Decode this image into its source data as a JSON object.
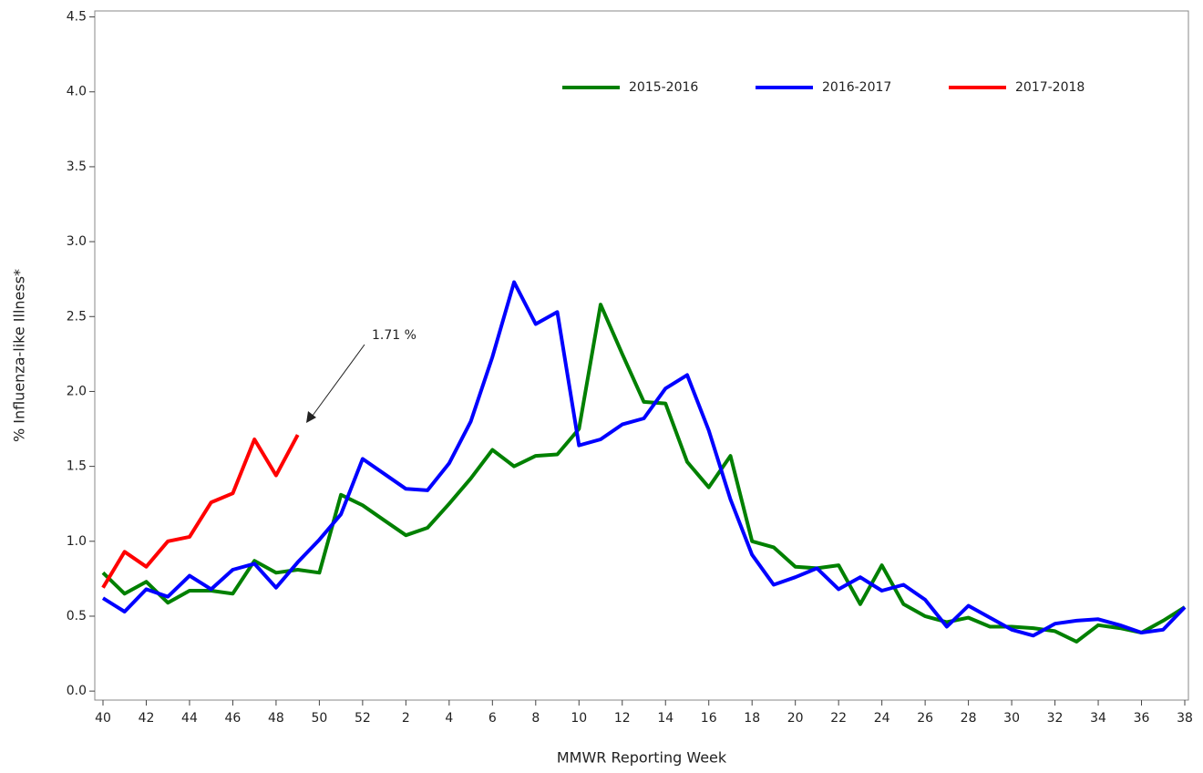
{
  "chart_data": {
    "type": "line",
    "x_label": "MMWR Reporting Week",
    "y_label": "% Influenza-like Illness*",
    "categories": [
      "40",
      null,
      "42",
      null,
      "44",
      null,
      "46",
      null,
      "48",
      null,
      "50",
      null,
      "52",
      null,
      "2",
      null,
      "4",
      null,
      "6",
      null,
      "8",
      null,
      "10",
      null,
      "12",
      null,
      "14",
      null,
      "16",
      null,
      "18",
      null,
      "20",
      null,
      "22",
      null,
      "24",
      null,
      "26",
      null,
      "28",
      null,
      "30",
      null,
      "32",
      null,
      "34",
      null,
      "36",
      null,
      "38"
    ],
    "series": [
      {
        "name": "2015-2016",
        "color": "#008000",
        "values": [
          0.79,
          0.65,
          0.73,
          0.59,
          0.67,
          0.67,
          0.65,
          0.87,
          0.79,
          0.81,
          0.79,
          1.31,
          1.24,
          1.14,
          1.04,
          1.09,
          1.25,
          1.42,
          1.61,
          1.5,
          1.57,
          1.58,
          1.75,
          2.58,
          2.25,
          1.93,
          1.92,
          1.53,
          1.36,
          1.57,
          1.0,
          0.96,
          0.83,
          0.82,
          0.84,
          0.58,
          0.84,
          0.58,
          0.5,
          0.46,
          0.49,
          0.43,
          0.43,
          0.42,
          0.4,
          0.33,
          0.44,
          0.42,
          0.39,
          0.47,
          0.56
        ]
      },
      {
        "name": "2016-2017",
        "color": "#0000ff",
        "values": [
          0.62,
          0.53,
          0.68,
          0.63,
          0.77,
          0.68,
          0.81,
          0.85,
          0.69,
          0.86,
          1.01,
          1.18,
          1.55,
          1.45,
          1.35,
          1.34,
          1.52,
          1.8,
          2.23,
          2.73,
          2.45,
          2.53,
          1.64,
          1.68,
          1.78,
          1.82,
          2.02,
          2.11,
          1.74,
          1.28,
          0.91,
          0.71,
          0.76,
          0.82,
          0.68,
          0.76,
          0.67,
          0.71,
          0.61,
          0.43,
          0.57,
          0.49,
          0.41,
          0.37,
          0.45,
          0.47,
          0.48,
          0.44,
          0.39,
          0.41,
          0.56
        ]
      },
      {
        "name": "2017-2018",
        "color": "#ff0000",
        "values": [
          0.69,
          0.93,
          0.83,
          1.0,
          1.03,
          1.26,
          1.32,
          1.68,
          1.44,
          1.71,
          null,
          null,
          null,
          null,
          null,
          null,
          null,
          null,
          null,
          null,
          null,
          null,
          null,
          null,
          null,
          null,
          null,
          null,
          null,
          null,
          null,
          null,
          null,
          null,
          null,
          null,
          null,
          null,
          null,
          null,
          null,
          null,
          null,
          null,
          null,
          null,
          null,
          null,
          null,
          null,
          null
        ]
      }
    ],
    "ylim": [
      -0.06,
      4.54
    ],
    "yticks": [
      {
        "value": 0,
        "label": "0.0"
      },
      {
        "value": 0.5,
        "label": "0.5"
      },
      {
        "value": 1,
        "label": "1.0"
      },
      {
        "value": 1.5,
        "label": "1.5"
      },
      {
        "value": 2,
        "label": "2.0"
      },
      {
        "value": 2.5,
        "label": "2.5"
      },
      {
        "value": 3,
        "label": "3.0"
      },
      {
        "value": 3.5,
        "label": "3.5"
      },
      {
        "value": 4,
        "label": "4.0"
      },
      {
        "value": 4.5,
        "label": "4.5"
      }
    ],
    "annotation": "1.71 %",
    "legend": "top",
    "grid": false
  }
}
